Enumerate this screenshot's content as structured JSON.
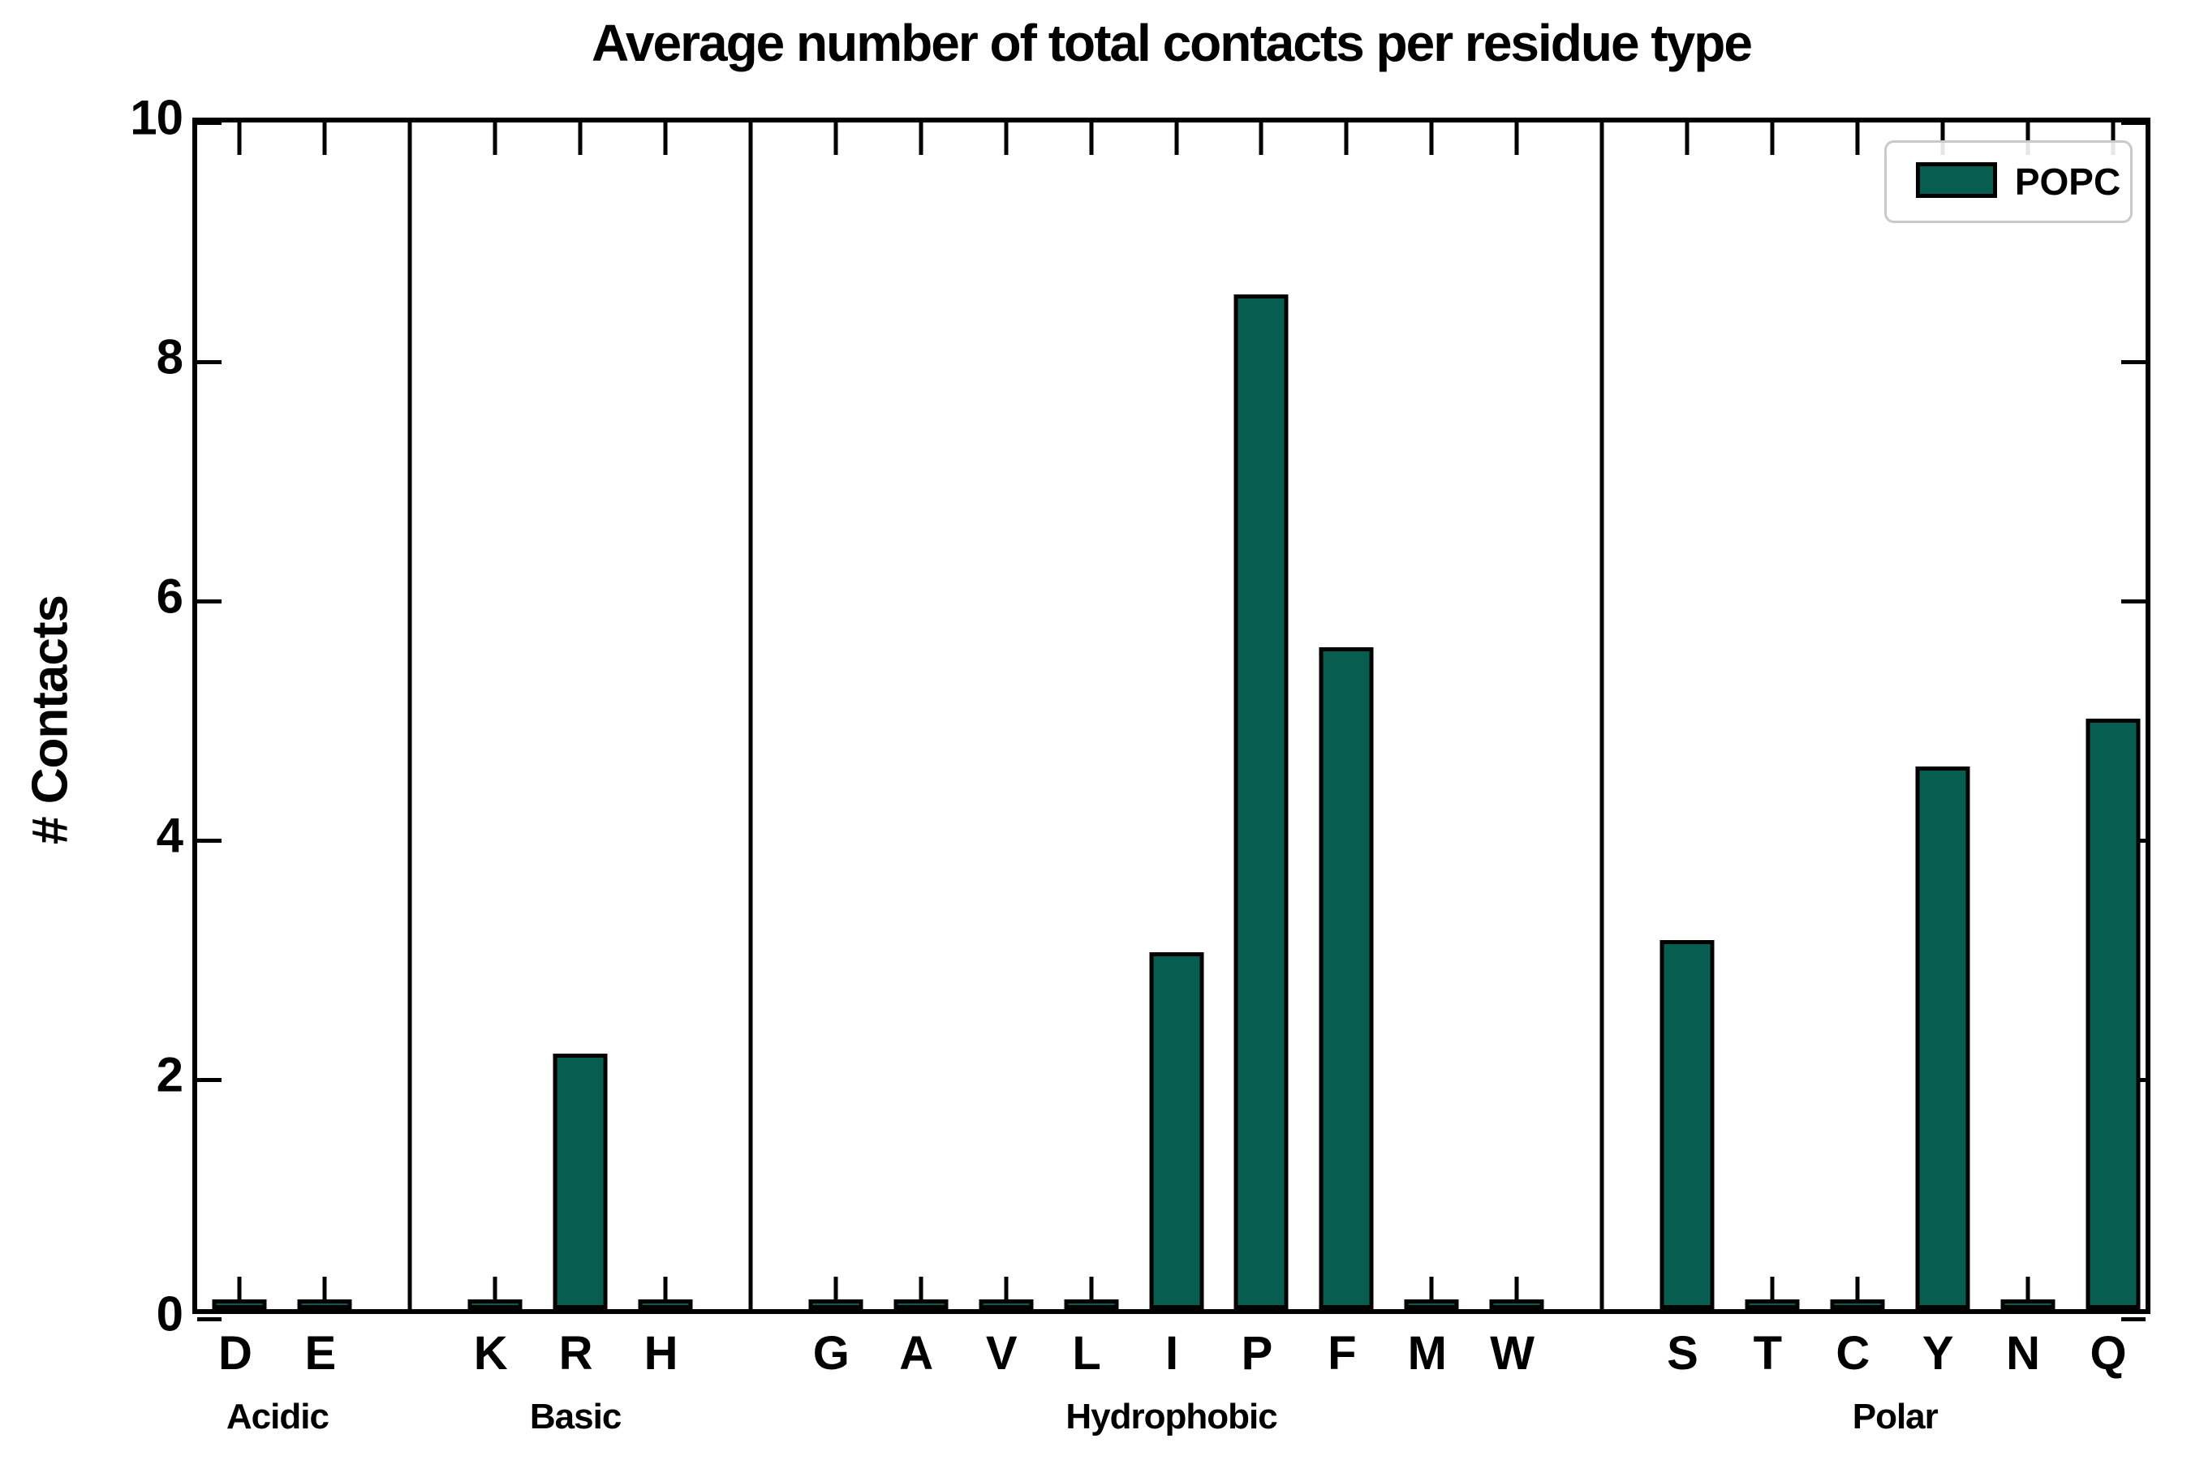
{
  "title": "Average number of total contacts per residue type",
  "ylabel": "# Contacts",
  "legend": {
    "label": "POPC"
  },
  "colors": {
    "bar_fill": "#075D50",
    "bar_edge": "#000000",
    "legend_border": "#c9c9c9"
  },
  "chart_data": {
    "type": "bar",
    "title": "Average number of total contacts per residue type",
    "xlabel": "",
    "ylabel": "# Contacts",
    "ylim": [
      0,
      10
    ],
    "yticks": [
      0,
      2,
      4,
      6,
      8,
      10
    ],
    "grid": false,
    "legend_position": "upper right",
    "series_name": "POPC",
    "groups": [
      {
        "label": "Acidic",
        "categories": [
          "D",
          "E"
        ],
        "values": [
          0.02,
          0.02
        ]
      },
      {
        "label": "Basic",
        "categories": [
          "K",
          "R",
          "H"
        ],
        "values": [
          0.02,
          2.1,
          0.02
        ]
      },
      {
        "label": "Hydrophobic",
        "categories": [
          "G",
          "A",
          "V",
          "L",
          "I",
          "P",
          "F",
          "M",
          "W"
        ],
        "values": [
          0.02,
          0.02,
          0.02,
          0.03,
          2.95,
          8.45,
          5.5,
          0.02,
          0.03
        ]
      },
      {
        "label": "Polar",
        "categories": [
          "S",
          "T",
          "C",
          "Y",
          "N",
          "Q"
        ],
        "values": [
          3.05,
          0.03,
          0.03,
          4.5,
          0.02,
          4.9
        ]
      }
    ]
  }
}
